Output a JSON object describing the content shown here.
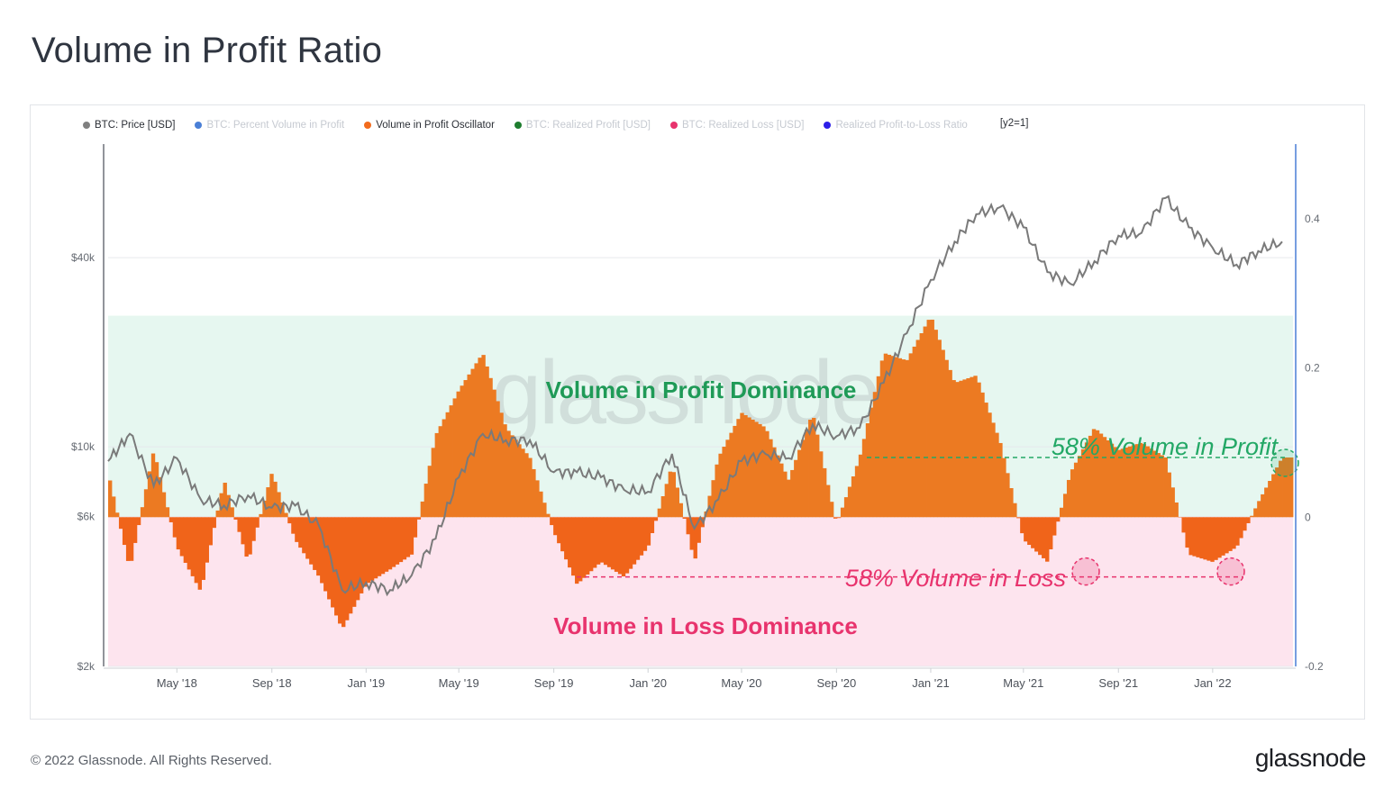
{
  "title": "Volume in Profit Ratio",
  "legend": [
    {
      "label": "BTC: Price [USD]",
      "color": "#808080",
      "active": true
    },
    {
      "label": "BTC: Percent Volume in Profit",
      "color": "#4a7fd6",
      "active": false
    },
    {
      "label": "Volume in Profit Oscillator",
      "color": "#f26b1d",
      "active": true
    },
    {
      "label": "BTC: Realized Profit [USD]",
      "color": "#1e7d2f",
      "active": false
    },
    {
      "label": "BTC: Realized Loss [USD]",
      "color": "#e8336d",
      "active": false
    },
    {
      "label": "Realized Profit-to-Loss Ratio",
      "color": "#2c1fe8",
      "active": false
    }
  ],
  "legend_tag": "[y2=1]",
  "watermark": "glassnode",
  "footer": {
    "copyright": "© 2022 Glassnode. All Rights Reserved.",
    "brand": "glassnode"
  },
  "chart_data": {
    "type": "line",
    "x_tick_labels": [
      "May '18",
      "Sep '18",
      "Jan '19",
      "May '19",
      "Sep '19",
      "Jan '20",
      "May '20",
      "Sep '20",
      "Jan '21",
      "May '21",
      "Sep '21",
      "Jan '22"
    ],
    "y_left": {
      "scale": "log",
      "tick_labels": [
        "$2k",
        "$6k",
        "$10k",
        "$40k"
      ],
      "tick_values": [
        2000,
        6000,
        10000,
        40000
      ]
    },
    "y_right": {
      "range": [
        -0.2,
        0.5
      ],
      "tick_labels": [
        "-0.2",
        "0",
        "0.2",
        "0.4"
      ],
      "tick_values": [
        -0.2,
        0,
        0.2,
        0.4
      ]
    },
    "zones": [
      {
        "label": "Volume in Profit Dominance",
        "from": 0,
        "to": 0.27,
        "color": "#e6f7f0",
        "label_color": "#1f9a57"
      },
      {
        "label": "Volume in Loss Dominance",
        "from": -0.2,
        "to": 0,
        "color": "#fde4ee",
        "label_color": "#e8336d"
      }
    ],
    "annotations": [
      {
        "text": "58% Volume in Profit",
        "value": 0.08,
        "color": "#23a866"
      },
      {
        "text": "58% Volume in Loss",
        "value": -0.08,
        "color": "#e8336d"
      }
    ],
    "series": [
      {
        "name": "BTC: Price [USD]",
        "axis": "left",
        "color": "#7a7a7a",
        "x": [
          "2018-02-01",
          "2018-03-01",
          "2018-04-01",
          "2018-05-01",
          "2018-06-01",
          "2018-07-01",
          "2018-08-01",
          "2018-09-01",
          "2018-10-01",
          "2018-11-01",
          "2018-12-01",
          "2019-01-01",
          "2019-02-01",
          "2019-03-01",
          "2019-04-01",
          "2019-05-01",
          "2019-06-01",
          "2019-07-01",
          "2019-08-01",
          "2019-09-01",
          "2019-10-01",
          "2019-11-01",
          "2019-12-01",
          "2020-01-01",
          "2020-02-01",
          "2020-03-01",
          "2020-04-01",
          "2020-05-01",
          "2020-06-01",
          "2020-07-01",
          "2020-08-01",
          "2020-09-01",
          "2020-10-01",
          "2020-11-01",
          "2020-12-01",
          "2021-01-01",
          "2021-02-01",
          "2021-03-01",
          "2021-04-01",
          "2021-05-01",
          "2021-06-01",
          "2021-07-01",
          "2021-08-01",
          "2021-09-01",
          "2021-10-01",
          "2021-11-01",
          "2021-12-01",
          "2022-01-01",
          "2022-02-01",
          "2022-03-01",
          "2022-04-01"
        ],
        "values": [
          9000,
          11000,
          7500,
          9200,
          6800,
          6500,
          7000,
          6400,
          6500,
          5600,
          3500,
          3700,
          3500,
          3900,
          5100,
          8000,
          11000,
          10500,
          10500,
          8300,
          8300,
          8000,
          7300,
          7200,
          9500,
          5500,
          6800,
          9000,
          9500,
          9200,
          11800,
          10800,
          11500,
          16000,
          23000,
          34000,
          45000,
          55000,
          58000,
          50000,
          36000,
          33000,
          39000,
          47000,
          48000,
          62000,
          50000,
          43000,
          38000,
          42000,
          45000
        ]
      },
      {
        "name": "Volume in Profit Oscillator",
        "axis": "right",
        "color": "#f26b1d",
        "x": [
          "2018-02-01",
          "2018-03-01",
          "2018-04-01",
          "2018-05-01",
          "2018-06-01",
          "2018-07-01",
          "2018-08-01",
          "2018-09-01",
          "2018-10-01",
          "2018-11-01",
          "2018-12-01",
          "2019-01-01",
          "2019-02-01",
          "2019-03-01",
          "2019-04-01",
          "2019-05-01",
          "2019-06-01",
          "2019-07-01",
          "2019-08-01",
          "2019-09-01",
          "2019-10-01",
          "2019-11-01",
          "2019-12-01",
          "2020-01-01",
          "2020-02-01",
          "2020-03-01",
          "2020-04-01",
          "2020-05-01",
          "2020-06-01",
          "2020-07-01",
          "2020-08-01",
          "2020-09-01",
          "2020-10-01",
          "2020-11-01",
          "2020-12-01",
          "2021-01-01",
          "2021-02-01",
          "2021-03-01",
          "2021-04-01",
          "2021-05-01",
          "2021-06-01",
          "2021-07-01",
          "2021-08-01",
          "2021-09-01",
          "2021-10-01",
          "2021-11-01",
          "2021-12-01",
          "2022-01-01",
          "2022-02-01",
          "2022-03-01",
          "2022-04-01"
        ],
        "values": [
          0.06,
          -0.07,
          0.09,
          -0.04,
          -0.1,
          0.05,
          -0.06,
          0.06,
          -0.03,
          -0.08,
          -0.15,
          -0.09,
          -0.07,
          -0.05,
          0.11,
          0.17,
          0.22,
          0.12,
          0.08,
          -0.02,
          -0.09,
          -0.06,
          -0.08,
          -0.04,
          0.07,
          -0.06,
          0.08,
          0.14,
          0.12,
          0.05,
          0.14,
          -0.01,
          0.08,
          0.22,
          0.21,
          0.27,
          0.18,
          0.19,
          0.1,
          -0.03,
          -0.06,
          0.06,
          0.12,
          0.09,
          0.1,
          0.08,
          -0.05,
          -0.06,
          -0.04,
          0.02,
          0.08
        ]
      }
    ]
  }
}
